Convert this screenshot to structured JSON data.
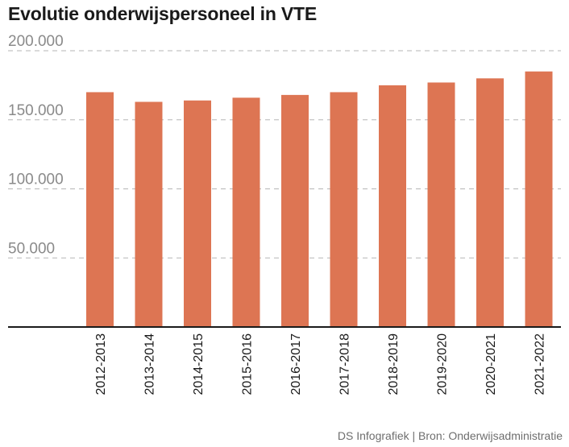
{
  "chart_data": {
    "type": "bar",
    "title": "Evolutie onderwijspersoneel in VTE",
    "xlabel": "",
    "ylabel": "",
    "categories": [
      "2012-2013",
      "2013-2014",
      "2014-2015",
      "2015-2016",
      "2016-2017",
      "2017-2018",
      "2018-2019",
      "2019-2020",
      "2020-2021",
      "2021-2022"
    ],
    "values": [
      170000,
      163000,
      164000,
      166000,
      168000,
      170000,
      175000,
      177000,
      180000,
      185000
    ],
    "ylim": [
      0,
      200000
    ],
    "yticks": [
      50000,
      100000,
      150000,
      200000
    ],
    "ytick_labels": [
      "50.000",
      "100.000",
      "150.000",
      "200.000"
    ],
    "grid": true,
    "bar_color": "#dd7553",
    "source": "DS Infografiek | Bron: Onderwijsadministratie"
  }
}
